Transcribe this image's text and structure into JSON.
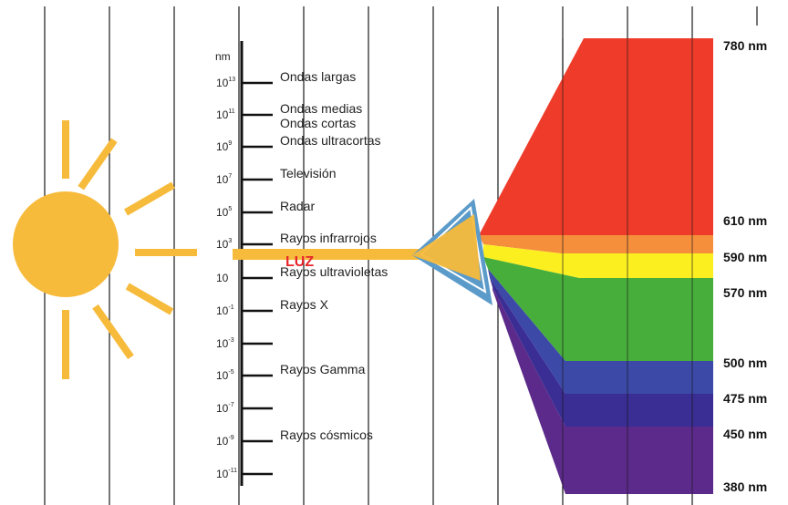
{
  "axis_unit": "nm",
  "scale": [
    {
      "base": "10",
      "exp": "13",
      "label": "Ondas largas"
    },
    {
      "base": "10",
      "exp": "11",
      "label": "Ondas medias"
    },
    {
      "base": "",
      "exp": "",
      "label": "Ondas cortas"
    },
    {
      "base": "10",
      "exp": "9",
      "label": "Ondas ultracortas"
    },
    {
      "base": "10",
      "exp": "7",
      "label": "Televisión"
    },
    {
      "base": "10",
      "exp": "5",
      "label": "Radar"
    },
    {
      "base": "10",
      "exp": "3",
      "label": "Rayos infrarrojos"
    },
    {
      "base": "10",
      "exp": "",
      "label": "Rayos ultravioletas"
    },
    {
      "base": "10",
      "exp": "-1",
      "label": "Rayos X"
    },
    {
      "base": "10",
      "exp": "-3",
      "label": ""
    },
    {
      "base": "10",
      "exp": "-5",
      "label": "Rayos Gamma"
    },
    {
      "base": "10",
      "exp": "-7",
      "label": ""
    },
    {
      "base": "10",
      "exp": "-9",
      "label": "Rayos cósmicos"
    },
    {
      "base": "10",
      "exp": "-11",
      "label": ""
    }
  ],
  "light_label": "LUZ",
  "spectrum": [
    {
      "wavelength": "780 nm",
      "color": "#ee3b2a"
    },
    {
      "wavelength": "610 nm",
      "color": "#f58f3c"
    },
    {
      "wavelength": "590 nm",
      "color": "#fcef1f"
    },
    {
      "wavelength": "570 nm",
      "color": "#47ae3c"
    },
    {
      "wavelength": "500 nm",
      "color": "#3c49a7"
    },
    {
      "wavelength": "475 nm",
      "color": "#3a2d93"
    },
    {
      "wavelength": "450 nm",
      "color": "#5b2a8b"
    },
    {
      "wavelength": "380 nm",
      "color": ""
    }
  ],
  "colors": {
    "sun": "#f7bb3c",
    "prism": "#5b9bc9",
    "grid": "#1a1a1a"
  }
}
